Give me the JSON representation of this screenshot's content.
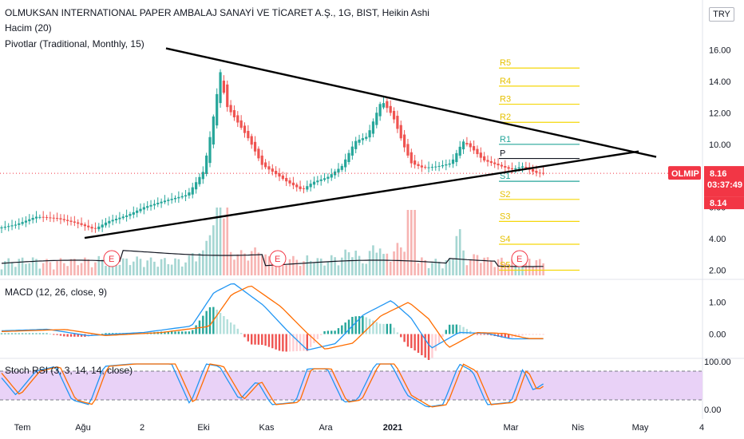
{
  "header": {
    "title": "OLMUKSAN INTERNATIONAL PAPER AMBALAJ SANAYİ VE TİCARET A.Ş., 1G, BIST, Heikin Ashi",
    "volume_label": "Hacim (20)",
    "pivot_label": "Pivotlar (Traditional, Monthly, 15)",
    "macd_label": "MACD (12, 26, close, 9)",
    "rsi_label": "Stoch RSI (3, 3, 14, 14, close)",
    "currency": "TRY"
  },
  "price_axis": {
    "ticks": [
      "16.00",
      "14.00",
      "12.00",
      "10.00",
      "6.00",
      "4.00",
      "2.00"
    ],
    "tick_values": [
      16,
      14,
      12,
      10,
      6,
      4,
      2
    ],
    "symbol_tag": "OLMIP",
    "last_price": "8.16",
    "countdown": "03:37:49",
    "prev_close": "8.14",
    "colors": {
      "tag": "#f23645",
      "up": "#26a69a",
      "down": "#ef5350"
    }
  },
  "macd_axis": {
    "ticks": [
      "1.00",
      "0.00"
    ],
    "tick_values": [
      1,
      0
    ]
  },
  "rsi_axis": {
    "ticks": [
      "100.00",
      "0.00"
    ],
    "tick_values": [
      100,
      0
    ]
  },
  "time_axis": {
    "labels": [
      "Tem",
      "Ağu",
      "2",
      "Eki",
      "Kas",
      "Ara",
      "2021",
      "Mar",
      "Nis",
      "May",
      "4"
    ],
    "bold": [
      "2021"
    ]
  },
  "pivots": {
    "levels": [
      {
        "name": "R5",
        "value": 14.85,
        "color": "#f5d70a"
      },
      {
        "name": "R4",
        "value": 13.7,
        "color": "#f5d70a"
      },
      {
        "name": "R3",
        "value": 12.55,
        "color": "#f5d70a"
      },
      {
        "name": "R2",
        "value": 11.4,
        "color": "#f5d70a"
      },
      {
        "name": "R1",
        "value": 10.0,
        "color": "#26a69a"
      },
      {
        "name": "P",
        "value": 9.1,
        "color": "#131722"
      },
      {
        "name": "S1",
        "value": 7.65,
        "color": "#26a69a"
      },
      {
        "name": "S2",
        "value": 6.5,
        "color": "#f5d70a"
      },
      {
        "name": "S3",
        "value": 5.1,
        "color": "#f5d70a"
      },
      {
        "name": "S4",
        "value": 3.65,
        "color": "#f5d70a"
      },
      {
        "name": "S5",
        "value": 2.0,
        "color": "#f5d70a"
      }
    ]
  },
  "earnings": {
    "label": "E",
    "count": 3
  },
  "chart_data": {
    "type": "line",
    "title": "OLMUKSAN INTERNATIONAL PAPER AMBALAJ SANAYİ VE TİCARET A.Ş., 1G, BIST, Heikin Ashi",
    "x": [
      "Tem",
      "Ağu",
      "2",
      "Eki",
      "Kas",
      "Ara",
      "2021",
      "Mar"
    ],
    "price_anchors": [
      {
        "t": "Tem",
        "close": 4.7
      },
      {
        "t": "Tem+",
        "close": 5.4
      },
      {
        "t": "Ağu",
        "close": 5.0
      },
      {
        "t": "2",
        "close": 5.9
      },
      {
        "t": "Eki-",
        "close": 6.8
      },
      {
        "t": "Eki",
        "close": 14.8
      },
      {
        "t": "Eki+",
        "close": 11.5
      },
      {
        "t": "Kas",
        "close": 8.5
      },
      {
        "t": "Kas+",
        "close": 7.0
      },
      {
        "t": "Ara",
        "close": 7.5
      },
      {
        "t": "Ara+",
        "close": 9.5
      },
      {
        "t": "2021-",
        "close": 12.8
      },
      {
        "t": "2021",
        "close": 10.5
      },
      {
        "t": "2021+",
        "close": 8.6
      },
      {
        "t": "Şub",
        "close": 10.0
      },
      {
        "t": "Mar",
        "close": 8.16
      }
    ],
    "trendlines": [
      {
        "name": "upper",
        "from": {
          "t": "Ağu-",
          "y": 16.2
        },
        "to": {
          "t": "May+",
          "y": 9.2
        }
      },
      {
        "name": "lower",
        "from": {
          "t": "Tem+",
          "y": 4.1
        },
        "to": {
          "t": "May",
          "y": 9.6
        }
      }
    ],
    "last_close": 8.16,
    "ylim": [
      2,
      16.5
    ],
    "macd": {
      "ylim": [
        -0.5,
        1.6
      ],
      "peak": 1.6,
      "trough": -0.5
    },
    "stoch_rsi": {
      "ylim": [
        0,
        100
      ],
      "bands": [
        20,
        80
      ]
    }
  }
}
